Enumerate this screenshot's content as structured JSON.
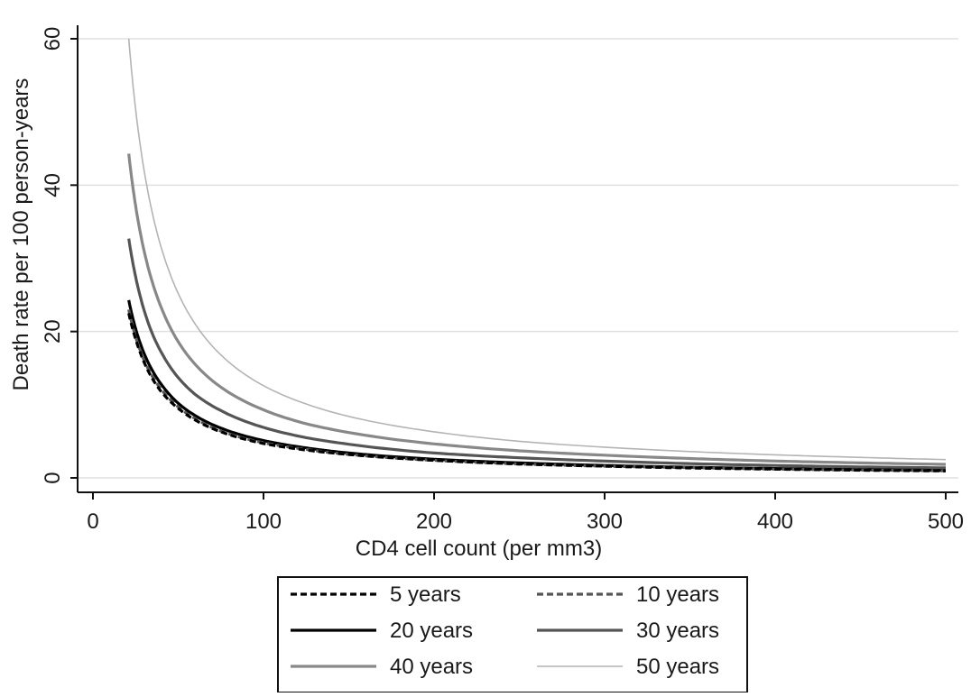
{
  "chart_data": {
    "type": "line",
    "title": "",
    "xlabel": "CD4 cell count (per mm3)",
    "ylabel": "Death rate per 100 person-years",
    "xlim": [
      0,
      500
    ],
    "ylim": [
      0,
      60
    ],
    "xticks": [
      0,
      100,
      200,
      300,
      400,
      500
    ],
    "yticks": [
      0,
      20,
      40,
      60
    ],
    "grid": "horizontal",
    "legend_position": "bottom",
    "x": [
      21,
      25,
      30,
      35,
      40,
      50,
      60,
      75,
      100,
      125,
      150,
      200,
      250,
      300,
      350,
      400,
      450,
      500
    ],
    "series": [
      {
        "name": "5 years",
        "color": "#000000",
        "dash": "dashed",
        "values": [
          22.5,
          19.0,
          15.8,
          13.5,
          11.8,
          9.5,
          7.9,
          6.3,
          4.7,
          3.8,
          3.2,
          2.4,
          1.9,
          1.6,
          1.35,
          1.2,
          1.05,
          0.95
        ]
      },
      {
        "name": "10 years",
        "color": "#555555",
        "dash": "dashed",
        "values": [
          23.0,
          19.3,
          16.1,
          13.8,
          12.1,
          9.7,
          8.1,
          6.4,
          4.8,
          3.9,
          3.2,
          2.4,
          1.9,
          1.6,
          1.4,
          1.2,
          1.07,
          0.97
        ]
      },
      {
        "name": "20 years",
        "color": "#000000",
        "dash": "solid",
        "values": [
          24.3,
          20.4,
          17.0,
          14.6,
          12.8,
          10.2,
          8.5,
          6.8,
          5.1,
          4.1,
          3.4,
          2.55,
          2.05,
          1.7,
          1.45,
          1.28,
          1.13,
          1.02
        ]
      },
      {
        "name": "30 years",
        "color": "#555555",
        "dash": "solid",
        "values": [
          32.7,
          27.5,
          22.9,
          19.6,
          17.2,
          13.7,
          11.4,
          9.2,
          6.9,
          5.5,
          4.6,
          3.4,
          2.75,
          2.3,
          1.95,
          1.7,
          1.5,
          1.37
        ]
      },
      {
        "name": "40 years",
        "color": "#888888",
        "dash": "solid",
        "values": [
          44.3,
          37.2,
          31.0,
          26.6,
          23.3,
          18.6,
          15.5,
          12.4,
          9.3,
          7.4,
          6.2,
          4.65,
          3.7,
          3.1,
          2.65,
          2.3,
          2.05,
          1.85
        ]
      },
      {
        "name": "50 years",
        "color": "#b4b4b4",
        "dash": "solid",
        "values": [
          60.0,
          50.4,
          42.0,
          36.0,
          31.5,
          25.2,
          21.0,
          16.8,
          12.6,
          10.1,
          8.4,
          6.3,
          5.0,
          4.2,
          3.6,
          3.15,
          2.8,
          2.5
        ]
      }
    ]
  }
}
